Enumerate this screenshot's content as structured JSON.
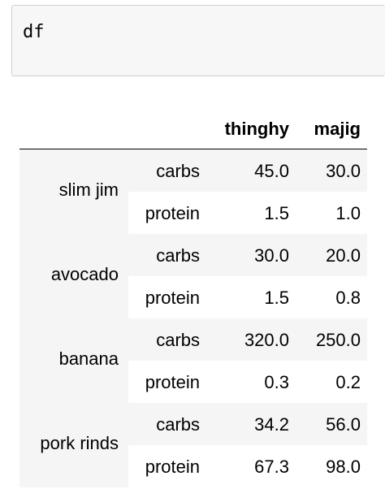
{
  "code_cell": {
    "input": "df"
  },
  "table": {
    "columns": [
      "thinghy",
      "majig"
    ],
    "groups": [
      {
        "name": "slim jim",
        "rows": [
          {
            "label": "carbs",
            "thinghy": "45.0",
            "majig": "30.0"
          },
          {
            "label": "protein",
            "thinghy": "1.5",
            "majig": "1.0"
          }
        ]
      },
      {
        "name": "avocado",
        "rows": [
          {
            "label": "carbs",
            "thinghy": "30.0",
            "majig": "20.0"
          },
          {
            "label": "protein",
            "thinghy": "1.5",
            "majig": "0.8"
          }
        ]
      },
      {
        "name": "banana",
        "rows": [
          {
            "label": "carbs",
            "thinghy": "320.0",
            "majig": "250.0"
          },
          {
            "label": "protein",
            "thinghy": "0.3",
            "majig": "0.2"
          }
        ]
      },
      {
        "name": "pork rinds",
        "rows": [
          {
            "label": "carbs",
            "thinghy": "34.2",
            "majig": "56.0"
          },
          {
            "label": "protein",
            "thinghy": "67.3",
            "majig": "98.0"
          }
        ]
      }
    ]
  }
}
